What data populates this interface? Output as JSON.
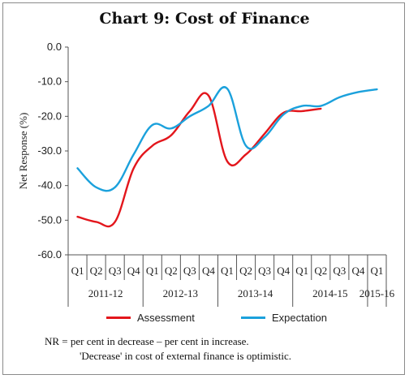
{
  "chart_data": {
    "type": "line",
    "title": "Chart 9: Cost of Finance",
    "ylabel": "Net Response (%)",
    "xlabel": "",
    "ylim": [
      -60,
      0
    ],
    "y_ticks": [
      "0.0",
      "-10.0",
      "-20.0",
      "-30.0",
      "-40.0",
      "-50.0",
      "-60.0"
    ],
    "y_tick_values": [
      0,
      -10,
      -20,
      -30,
      -40,
      -50,
      -60
    ],
    "categories": [
      "Q1",
      "Q2",
      "Q3",
      "Q4",
      "Q1",
      "Q2",
      "Q3",
      "Q4",
      "Q1",
      "Q2",
      "Q3",
      "Q4",
      "Q1",
      "Q2",
      "Q3",
      "Q4",
      "Q1"
    ],
    "groups": [
      {
        "label": "2011-12",
        "quarters": 4
      },
      {
        "label": "2012-13",
        "quarters": 4
      },
      {
        "label": "2013-14",
        "quarters": 4
      },
      {
        "label": "2014-15",
        "quarters": 4
      },
      {
        "label": "2015-16",
        "quarters": 1
      }
    ],
    "series": [
      {
        "name": "Assessment",
        "color": "#e3161c",
        "values": [
          -49,
          -50.5,
          -50.5,
          -35,
          -28.5,
          -25.5,
          -18.5,
          -14,
          -33,
          -31,
          -25,
          -19,
          -18.5,
          -17.8,
          null,
          null,
          null
        ]
      },
      {
        "name": "Expectation",
        "color": "#1ba1dc",
        "values": [
          -35,
          -40.5,
          -40.5,
          -31,
          -22.5,
          -23.5,
          -20,
          -17,
          -12,
          -28.5,
          -26,
          -19.5,
          -17,
          -17,
          -14.5,
          -13,
          -12.2
        ]
      }
    ],
    "grid": false,
    "legend_position": "bottom"
  },
  "notes": {
    "line1": "NR = per cent in decrease – per cent in increase.",
    "line2": "'Decrease' in cost of external finance is optimistic."
  }
}
